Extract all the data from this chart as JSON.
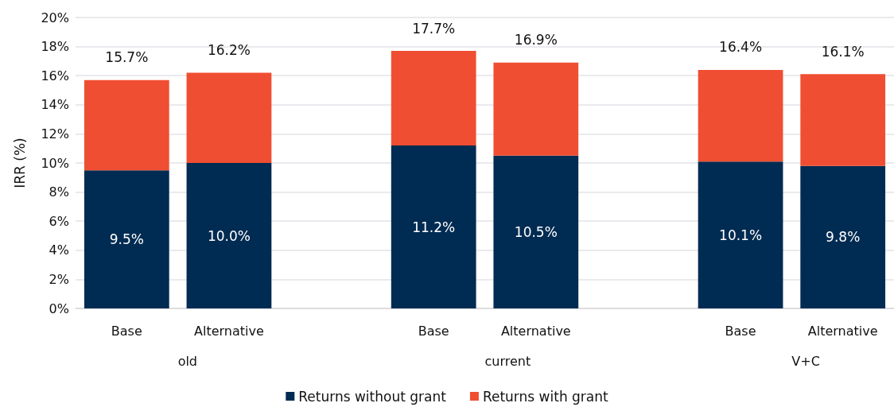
{
  "chart_data": {
    "type": "bar",
    "stacked": true,
    "ylabel": "IRR (%)",
    "categories": [
      "Base",
      "Alternative",
      null,
      "Base",
      "Alternative",
      null,
      "Base",
      "Alternative"
    ],
    "annotations": [
      "old",
      "current",
      "V+C"
    ],
    "series": [
      {
        "name": "Returns without grant",
        "color": "#002b52",
        "values": [
          9.5,
          10.0,
          null,
          11.2,
          10.5,
          null,
          10.1,
          9.8
        ],
        "value_labels": [
          "9.5%",
          "10.0%",
          null,
          "11.2%",
          "10.5%",
          null,
          "10.1%",
          "9.8%"
        ]
      },
      {
        "name": "Returns with grant",
        "color": "#f04e32",
        "values": [
          6.2,
          6.2,
          null,
          6.5,
          6.4,
          null,
          6.3,
          6.3
        ]
      }
    ],
    "totals": [
      "15.7%",
      "16.2%",
      null,
      "17.7%",
      "16.9%",
      null,
      "16.4%",
      "16.1%"
    ],
    "ylim": [
      0,
      20
    ],
    "yticks": [
      {
        "value": 0,
        "label": "0%"
      },
      {
        "value": 2,
        "label": "2%"
      },
      {
        "value": 4,
        "label": "4%"
      },
      {
        "value": 6,
        "label": "6%"
      },
      {
        "value": 8,
        "label": "8%"
      },
      {
        "value": 10,
        "label": "10%"
      },
      {
        "value": 12,
        "label": "12%"
      },
      {
        "value": 14,
        "label": "14%"
      },
      {
        "value": 16,
        "label": "16%"
      },
      {
        "value": 18,
        "label": "18%"
      },
      {
        "value": 20,
        "label": "20%"
      }
    ],
    "grid": "y",
    "legend": "bottom"
  }
}
